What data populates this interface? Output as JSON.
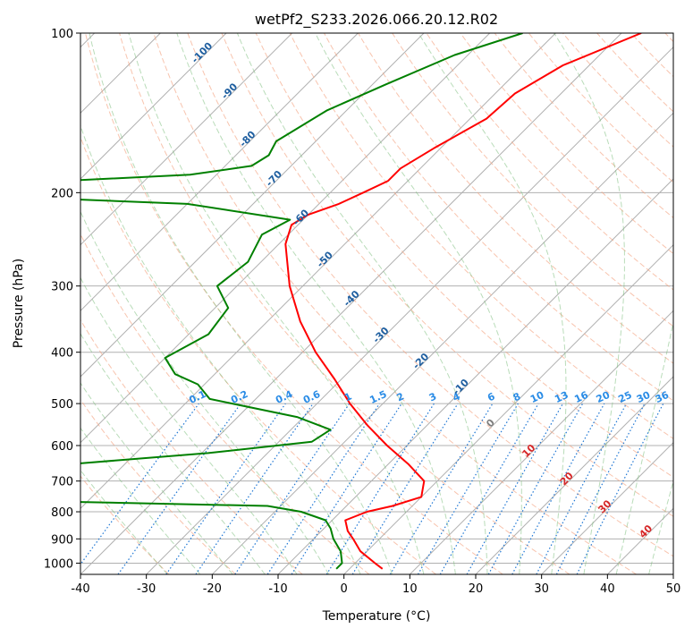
{
  "chart_data": {
    "type": "line",
    "subtype": "skew-t log-p diagram",
    "title": "wetPf2_S233.2026.066.20.12.R02",
    "xlabel": "Temperature (°C)",
    "ylabel": "Pressure (hPa)",
    "xlim": [
      -40,
      50
    ],
    "ylim": [
      1050,
      100
    ],
    "y_scale": "log",
    "grid": true,
    "x_ticks": [
      -40,
      -30,
      -20,
      -10,
      0,
      10,
      20,
      30,
      40,
      50
    ],
    "y_ticks": [
      100,
      200,
      300,
      400,
      500,
      600,
      700,
      800,
      900,
      1000
    ],
    "isotherm_labels": [
      {
        "text": "-100",
        "t": -100,
        "p": 110
      },
      {
        "text": "-90",
        "t": -90,
        "p": 130
      },
      {
        "text": "-80",
        "t": -80,
        "p": 160
      },
      {
        "text": "-70",
        "t": -70,
        "p": 190
      },
      {
        "text": "-60",
        "t": -60,
        "p": 225
      },
      {
        "text": "-50",
        "t": -50,
        "p": 270
      },
      {
        "text": "-40",
        "t": -40,
        "p": 320
      },
      {
        "text": "-30",
        "t": -30,
        "p": 375
      },
      {
        "text": "-20",
        "t": -20,
        "p": 420
      },
      {
        "text": "-10",
        "t": -10,
        "p": 470
      },
      {
        "text": "0",
        "t": 0,
        "p": 550,
        "color": "#7f7f7f"
      },
      {
        "text": "10",
        "t": 10,
        "p": 620,
        "color": "#d62728"
      },
      {
        "text": "20",
        "t": 20,
        "p": 700,
        "color": "#d62728"
      },
      {
        "text": "30",
        "t": 30,
        "p": 790,
        "color": "#d62728"
      },
      {
        "text": "40",
        "t": 40,
        "p": 880,
        "color": "#d62728"
      }
    ],
    "mixing_ratio_labels": [
      "0.1",
      "0.2",
      "0.4",
      "0.6",
      "1",
      "1.5",
      "2",
      "3",
      "4",
      "6",
      "8",
      "10",
      "13",
      "16",
      "20",
      "25",
      "30",
      "36"
    ],
    "series": [
      {
        "color": "#ff0000",
        "points": [
          {
            "p": 100,
            "t": -37
          },
          {
            "p": 115,
            "t": -44
          },
          {
            "p": 130,
            "t": -47
          },
          {
            "p": 145,
            "t": -47.5
          },
          {
            "p": 165,
            "t": -51
          },
          {
            "p": 180,
            "t": -53
          },
          {
            "p": 190,
            "t": -53
          },
          {
            "p": 200,
            "t": -55
          },
          {
            "p": 210,
            "t": -57
          },
          {
            "p": 220,
            "t": -60
          },
          {
            "p": 230,
            "t": -61
          },
          {
            "p": 250,
            "t": -59
          },
          {
            "p": 300,
            "t": -52
          },
          {
            "p": 350,
            "t": -45
          },
          {
            "p": 400,
            "t": -38
          },
          {
            "p": 450,
            "t": -31
          },
          {
            "p": 500,
            "t": -25
          },
          {
            "p": 550,
            "t": -19
          },
          {
            "p": 600,
            "t": -13
          },
          {
            "p": 650,
            "t": -7
          },
          {
            "p": 700,
            "t": -2
          },
          {
            "p": 750,
            "t": 0
          },
          {
            "p": 780,
            "t": -3
          },
          {
            "p": 800,
            "t": -6
          },
          {
            "p": 830,
            "t": -8
          },
          {
            "p": 870,
            "t": -6
          },
          {
            "p": 900,
            "t": -4
          },
          {
            "p": 950,
            "t": -1
          },
          {
            "p": 1000,
            "t": 3
          },
          {
            "p": 1025,
            "t": 5
          }
        ]
      },
      {
        "color": "#008000",
        "points": [
          {
            "p": 100,
            "t": -55
          },
          {
            "p": 110,
            "t": -62
          },
          {
            "p": 125,
            "t": -68
          },
          {
            "p": 140,
            "t": -73
          },
          {
            "p": 160,
            "t": -76
          },
          {
            "p": 170,
            "t": -75
          },
          {
            "p": 178,
            "t": -76
          },
          {
            "p": 185,
            "t": -84
          },
          {
            "p": 190,
            "t": -102
          },
          {
            "p": 200,
            "t": -105
          },
          {
            "p": 205,
            "t": -102
          },
          {
            "p": 210,
            "t": -80
          },
          {
            "p": 225,
            "t": -62
          },
          {
            "p": 240,
            "t": -64
          },
          {
            "p": 270,
            "t": -62
          },
          {
            "p": 300,
            "t": -63
          },
          {
            "p": 330,
            "t": -58
          },
          {
            "p": 370,
            "t": -57
          },
          {
            "p": 410,
            "t": -60
          },
          {
            "p": 440,
            "t": -56
          },
          {
            "p": 460,
            "t": -51
          },
          {
            "p": 490,
            "t": -47
          },
          {
            "p": 530,
            "t": -31
          },
          {
            "p": 560,
            "t": -24
          },
          {
            "p": 590,
            "t": -25
          },
          {
            "p": 620,
            "t": -39
          },
          {
            "p": 650,
            "t": -58
          },
          {
            "p": 670,
            "t": -73
          },
          {
            "p": 690,
            "t": -59
          },
          {
            "p": 700,
            "t": -58
          },
          {
            "p": 730,
            "t": -60
          },
          {
            "p": 745,
            "t": -72
          },
          {
            "p": 760,
            "t": -77
          },
          {
            "p": 765,
            "t": -55
          },
          {
            "p": 780,
            "t": -22
          },
          {
            "p": 800,
            "t": -16
          },
          {
            "p": 830,
            "t": -11
          },
          {
            "p": 860,
            "t": -9
          },
          {
            "p": 900,
            "t": -7
          },
          {
            "p": 950,
            "t": -4
          },
          {
            "p": 1000,
            "t": -2
          },
          {
            "p": 1025,
            "t": -2
          }
        ]
      }
    ]
  }
}
